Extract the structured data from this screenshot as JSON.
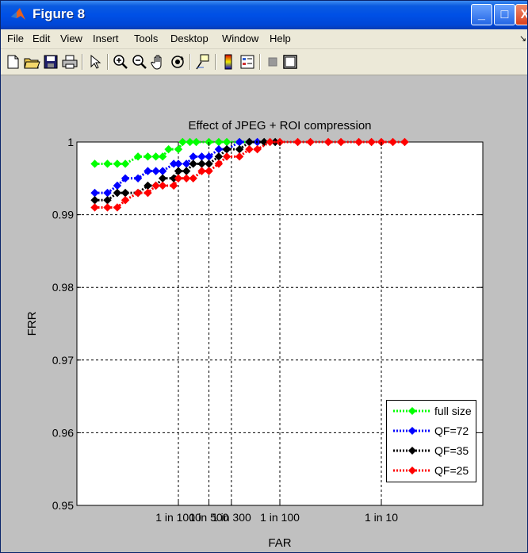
{
  "window": {
    "title": "Figure 8",
    "min_label": "_",
    "max_label": "□",
    "close_label": "X"
  },
  "menu": [
    {
      "label": "File"
    },
    {
      "label": "Edit"
    },
    {
      "label": "View"
    },
    {
      "label": "Insert"
    },
    {
      "label": "Tools"
    },
    {
      "label": "Desktop"
    },
    {
      "label": "Window"
    },
    {
      "label": "Help"
    }
  ],
  "menu_overflow": "↘",
  "toolbar": {
    "icons": [
      "new-file-icon",
      "open-folder-icon",
      "save-icon",
      "print-icon",
      "pointer-icon",
      "zoom-in-icon",
      "zoom-out-icon",
      "pan-hand-icon",
      "rotate-3d-icon",
      "data-cursor-icon",
      "colorbar-icon",
      "legend-icon",
      "hide-plot-tools-icon",
      "show-plot-tools-icon"
    ]
  },
  "chart_data": {
    "type": "line",
    "title": "Effect of JPEG + ROI compression",
    "xlabel": "FAR",
    "ylabel": "FRR",
    "x_tick_labels": [
      "1 in 1000",
      "1 in 500",
      "1 in 300",
      "1 in 100",
      "1 in 10"
    ],
    "x_tick_values": [
      0.001,
      0.002,
      0.00333,
      0.01,
      0.1
    ],
    "x_scale": "log",
    "xlim": [
      0.0001,
      1
    ],
    "y_tick_labels": [
      "1",
      "0.99",
      "0.98",
      "0.97",
      "0.96",
      "0.95"
    ],
    "ylim": [
      0.95,
      1
    ],
    "grid": true,
    "legend_position": "bottom-right",
    "series": [
      {
        "name": "full size",
        "color": "#00ff00",
        "x": [
          0.00015,
          0.0002,
          0.00025,
          0.0003,
          0.0004,
          0.0005,
          0.0006,
          0.0007,
          0.0008,
          0.001,
          0.0011,
          0.0013,
          0.0015,
          0.002,
          0.0025,
          0.003,
          0.004,
          0.005
        ],
        "y": [
          0.997,
          0.997,
          0.997,
          0.997,
          0.998,
          0.998,
          0.998,
          0.998,
          0.999,
          0.999,
          1.0,
          1.0,
          1.0,
          1.0,
          1.0,
          1.0,
          1.0,
          1.0
        ]
      },
      {
        "name": "QF=72",
        "color": "#0000ff",
        "x": [
          0.00015,
          0.0002,
          0.00025,
          0.0003,
          0.0004,
          0.0005,
          0.0006,
          0.0007,
          0.0009,
          0.001,
          0.0012,
          0.0014,
          0.0017,
          0.002,
          0.0025,
          0.003,
          0.004,
          0.005,
          0.006
        ],
        "y": [
          0.993,
          0.993,
          0.994,
          0.995,
          0.995,
          0.996,
          0.996,
          0.996,
          0.997,
          0.997,
          0.997,
          0.998,
          0.998,
          0.998,
          0.999,
          0.999,
          1.0,
          1.0,
          1.0
        ]
      },
      {
        "name": "QF=35",
        "color": "#000000",
        "x": [
          0.00015,
          0.0002,
          0.00025,
          0.0003,
          0.0004,
          0.0005,
          0.0006,
          0.0007,
          0.0009,
          0.001,
          0.0012,
          0.0014,
          0.0017,
          0.002,
          0.0025,
          0.003,
          0.004,
          0.005,
          0.007,
          0.009
        ],
        "y": [
          0.992,
          0.992,
          0.993,
          0.993,
          0.993,
          0.994,
          0.994,
          0.995,
          0.995,
          0.996,
          0.996,
          0.997,
          0.997,
          0.997,
          0.998,
          0.999,
          0.999,
          1.0,
          1.0,
          1.0
        ]
      },
      {
        "name": "QF=25",
        "color": "#ff0000",
        "x": [
          0.00015,
          0.0002,
          0.00025,
          0.0003,
          0.0004,
          0.0005,
          0.0006,
          0.0007,
          0.0009,
          0.001,
          0.0012,
          0.0014,
          0.0017,
          0.002,
          0.0025,
          0.003,
          0.004,
          0.005,
          0.006,
          0.008,
          0.01,
          0.015,
          0.02,
          0.03,
          0.04,
          0.06,
          0.08,
          0.1,
          0.13,
          0.17
        ],
        "y": [
          0.991,
          0.991,
          0.991,
          0.992,
          0.993,
          0.993,
          0.994,
          0.994,
          0.994,
          0.995,
          0.995,
          0.995,
          0.996,
          0.996,
          0.997,
          0.998,
          0.998,
          0.999,
          0.999,
          1.0,
          1.0,
          1.0,
          1.0,
          1.0,
          1.0,
          1.0,
          1.0,
          1.0,
          1.0,
          1.0
        ]
      }
    ]
  }
}
